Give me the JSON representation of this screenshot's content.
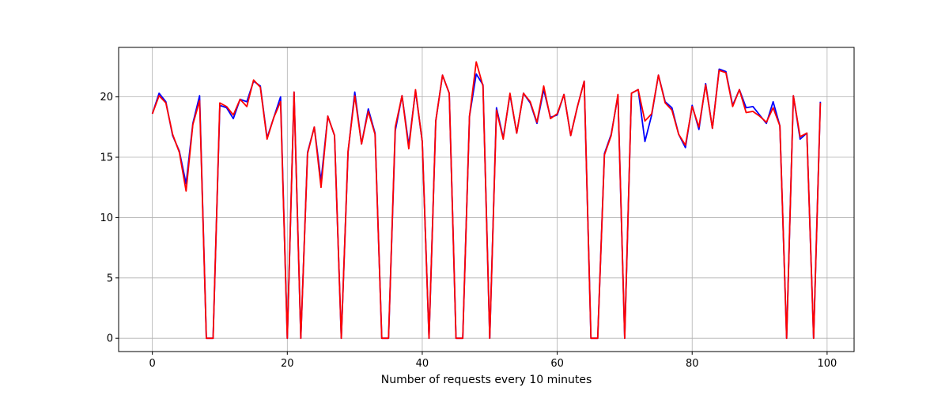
{
  "chart_data": {
    "type": "line",
    "title": "",
    "xlabel": "Number of requests every 10 minutes",
    "ylabel": "",
    "xlim": [
      -5,
      104
    ],
    "ylim": [
      -1.1,
      24.1
    ],
    "xticks": [
      0,
      20,
      40,
      60,
      80,
      100
    ],
    "yticks": [
      0,
      5,
      10,
      15,
      20
    ],
    "grid": true,
    "legend": "none",
    "x": [
      0,
      1,
      2,
      3,
      4,
      5,
      6,
      7,
      8,
      9,
      10,
      11,
      12,
      13,
      14,
      15,
      16,
      17,
      18,
      19,
      20,
      21,
      22,
      23,
      24,
      25,
      26,
      27,
      28,
      29,
      30,
      31,
      32,
      33,
      34,
      35,
      36,
      37,
      38,
      39,
      40,
      41,
      42,
      43,
      44,
      45,
      46,
      47,
      48,
      49,
      50,
      51,
      52,
      53,
      54,
      55,
      56,
      57,
      58,
      59,
      60,
      61,
      62,
      63,
      64,
      65,
      66,
      67,
      68,
      69,
      70,
      71,
      72,
      73,
      74,
      75,
      76,
      77,
      78,
      79,
      80,
      81,
      82,
      83,
      84,
      85,
      86,
      87,
      88,
      89,
      90,
      91,
      92,
      93,
      94,
      95,
      96,
      97,
      98,
      99
    ],
    "series": [
      {
        "color": "#0000ff",
        "values": [
          18.6,
          20.3,
          19.6,
          16.8,
          15.5,
          12.8,
          17.8,
          20.1,
          0.0,
          0.0,
          19.3,
          19.1,
          18.2,
          19.8,
          19.6,
          21.3,
          20.9,
          16.6,
          18.3,
          20.0,
          0.0,
          20.4,
          0.0,
          15.4,
          17.5,
          13.0,
          18.4,
          16.8,
          0.0,
          15.4,
          20.4,
          16.1,
          19.0,
          17.0,
          0.0,
          0.0,
          17.2,
          20.1,
          16.0,
          20.5,
          16.3,
          0.0,
          18.0,
          21.8,
          20.3,
          0.0,
          0.0,
          18.4,
          21.9,
          21.0,
          0.0,
          19.1,
          16.6,
          20.2,
          17.0,
          20.3,
          19.5,
          17.8,
          20.6,
          18.3,
          18.5,
          20.2,
          16.8,
          19.2,
          21.3,
          0.0,
          0.0,
          15.3,
          16.9,
          20.1,
          0.0,
          20.3,
          20.6,
          16.3,
          18.5,
          21.8,
          19.6,
          19.1,
          16.9,
          15.8,
          19.3,
          17.3,
          21.1,
          17.4,
          22.3,
          22.1,
          19.3,
          20.6,
          19.1,
          19.2,
          18.5,
          17.8,
          19.6,
          17.6,
          0.0,
          20.1,
          16.5,
          17.0,
          0.0,
          19.6
        ]
      },
      {
        "color": "#ff0000",
        "values": [
          18.6,
          20.1,
          19.5,
          16.9,
          15.4,
          12.2,
          17.7,
          19.7,
          0.0,
          0.0,
          19.5,
          19.2,
          18.5,
          19.8,
          19.2,
          21.4,
          20.8,
          16.5,
          18.3,
          19.6,
          0.0,
          20.4,
          0.0,
          15.3,
          17.5,
          12.5,
          18.4,
          16.8,
          0.0,
          15.5,
          20.1,
          16.1,
          18.8,
          16.9,
          0.0,
          0.0,
          17.5,
          20.1,
          15.7,
          20.6,
          16.3,
          0.0,
          18.0,
          21.8,
          20.3,
          0.0,
          0.0,
          18.4,
          22.9,
          20.9,
          0.0,
          18.9,
          16.5,
          20.3,
          17.0,
          20.3,
          19.6,
          17.9,
          20.9,
          18.2,
          18.6,
          20.2,
          16.8,
          19.2,
          21.3,
          0.0,
          0.0,
          15.2,
          16.8,
          20.2,
          0.0,
          20.3,
          20.6,
          18.0,
          18.6,
          21.8,
          19.5,
          18.9,
          16.9,
          16.0,
          19.2,
          17.5,
          21.0,
          17.4,
          22.2,
          22.0,
          19.2,
          20.6,
          18.7,
          18.8,
          18.4,
          17.9,
          19.1,
          17.6,
          0.0,
          20.1,
          16.7,
          17.0,
          0.0,
          19.5
        ]
      }
    ]
  }
}
